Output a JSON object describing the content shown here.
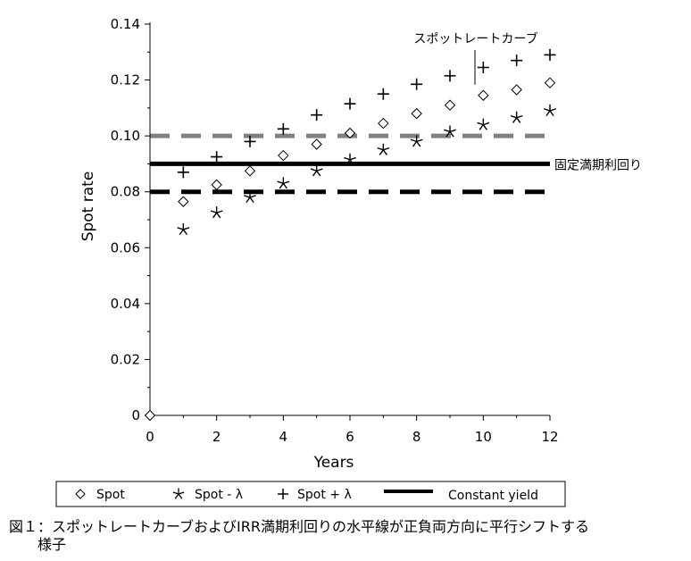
{
  "chart_data": {
    "type": "scatter",
    "xlabel": "Years",
    "ylabel": "Spot rate",
    "xlim": [
      0,
      12
    ],
    "ylim": [
      0,
      0.14
    ],
    "xticks": [
      "0",
      "2",
      "4",
      "6",
      "8",
      "10",
      "12"
    ],
    "yticks": [
      "0",
      "0.02",
      "0.04",
      "0.06",
      "0.08",
      "0.10",
      "0.12",
      "0.14"
    ],
    "grid": false,
    "legend_position": "bottom",
    "series": [
      {
        "name": "Spot",
        "marker": "diamond",
        "x": [
          0,
          1,
          2,
          3,
          4,
          5,
          6,
          7,
          8,
          9,
          10,
          11,
          12
        ],
        "y": [
          0,
          0.0765,
          0.0825,
          0.0875,
          0.093,
          0.097,
          0.101,
          0.1045,
          0.108,
          0.111,
          0.1145,
          0.1165,
          0.119
        ]
      },
      {
        "name": "Spot - λ",
        "marker": "star",
        "x": [
          1,
          2,
          3,
          4,
          5,
          6,
          7,
          8,
          9,
          10,
          11,
          12
        ],
        "y": [
          0.0665,
          0.0725,
          0.078,
          0.083,
          0.0875,
          0.0915,
          0.095,
          0.098,
          0.1015,
          0.104,
          0.1065,
          0.109
        ]
      },
      {
        "name": "Spot + λ",
        "marker": "plus",
        "x": [
          1,
          2,
          3,
          4,
          5,
          6,
          7,
          8,
          9,
          10,
          11,
          12
        ],
        "y": [
          0.087,
          0.0925,
          0.098,
          0.1025,
          0.1075,
          0.1115,
          0.115,
          0.1185,
          0.1215,
          0.1245,
          0.127,
          0.129
        ]
      },
      {
        "name": "Constant yield",
        "marker": "line",
        "y_constant": 0.09
      }
    ],
    "reference_lines": [
      {
        "y": 0.1,
        "style": "dashed",
        "color": "#808080"
      },
      {
        "y": 0.08,
        "style": "dashed",
        "color": "#000000"
      }
    ],
    "annotations": [
      {
        "text": "スポットレートカーブ",
        "points_to": {
          "x": 10,
          "y": 0.1145
        }
      },
      {
        "text": "固定満期利回り",
        "points_to": {
          "x": 12,
          "y": 0.09
        }
      }
    ],
    "legend": [
      "Spot",
      "Spot - λ",
      "Spot + λ",
      "Constant yield"
    ],
    "colors": {
      "markers": "#000000",
      "constant_yield": "#000000",
      "upper_dash": "#808080",
      "lower_dash": "#000000"
    }
  },
  "caption": {
    "line1": "図１：スポットレートカーブおよびIRR満期利回りの水平線が正負両方向に平行シフトする",
    "line2": "　　様子"
  }
}
